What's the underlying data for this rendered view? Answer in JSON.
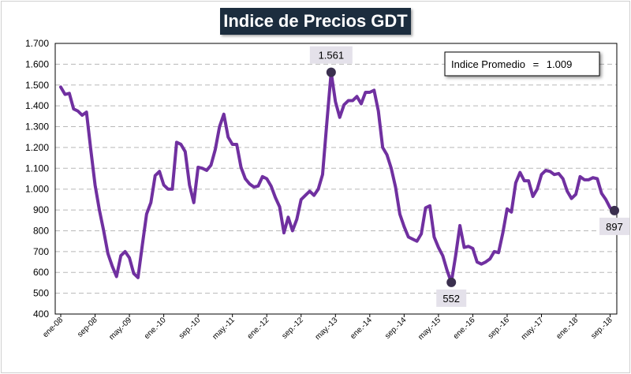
{
  "chart_data": {
    "type": "line",
    "title": "Indice de Precios GDT",
    "xlabel": "",
    "ylabel": "",
    "ylim": [
      400,
      1700
    ],
    "y_ticks": [
      400,
      500,
      600,
      700,
      800,
      900,
      1000,
      1100,
      1200,
      1300,
      1400,
      1500,
      1600,
      1700
    ],
    "y_tick_labels": [
      "400",
      "500",
      "600",
      "700",
      "800",
      "900",
      "1.000",
      "1.100",
      "1.200",
      "1.300",
      "1.400",
      "1.500",
      "1.600",
      "1.700"
    ],
    "x_tick_labels": [
      "ene-08",
      "sep-08",
      "may.-09",
      "ene.-10",
      "sep.-10",
      "may.-11",
      "ene.-12",
      "sep.-12",
      "may.-13",
      "ene.-14",
      "sep.-14",
      "may.-15",
      "ene.-16",
      "sep.-16",
      "may.-17",
      "ene.-18",
      "sep.-18"
    ],
    "x_tick_step": 8,
    "series": [
      {
        "name": "Indice de Precios GDT",
        "color": "#7030a0",
        "values": [
          1490,
          1455,
          1460,
          1385,
          1375,
          1355,
          1370,
          1190,
          1020,
          900,
          800,
          690,
          630,
          580,
          680,
          700,
          670,
          595,
          575,
          730,
          880,
          935,
          1065,
          1085,
          1020,
          1000,
          1000,
          1225,
          1215,
          1180,
          1020,
          935,
          1105,
          1100,
          1090,
          1115,
          1190,
          1300,
          1360,
          1250,
          1215,
          1215,
          1105,
          1050,
          1025,
          1010,
          1015,
          1060,
          1050,
          1015,
          960,
          915,
          790,
          865,
          800,
          855,
          950,
          970,
          990,
          970,
          1000,
          1070,
          1320,
          1561,
          1420,
          1345,
          1405,
          1425,
          1425,
          1445,
          1410,
          1465,
          1465,
          1475,
          1375,
          1200,
          1165,
          1100,
          1010,
          880,
          820,
          770,
          760,
          750,
          785,
          910,
          920,
          770,
          720,
          680,
          610,
          552,
          680,
          825,
          720,
          725,
          715,
          650,
          640,
          650,
          665,
          700,
          695,
          790,
          905,
          890,
          1030,
          1080,
          1040,
          1040,
          965,
          1000,
          1070,
          1090,
          1085,
          1070,
          1075,
          1050,
          990,
          955,
          975,
          1060,
          1045,
          1045,
          1055,
          1050,
          980,
          950,
          910,
          897
        ]
      }
    ],
    "highlighted_points": [
      {
        "index": 63,
        "value": 1561,
        "label": "1.561"
      },
      {
        "index": 91,
        "value": 552,
        "label": "552"
      },
      {
        "index": 129,
        "value": 897,
        "label": "897"
      }
    ],
    "annotation": {
      "label": "Indice Promedio",
      "separator": "=",
      "value": "1.009"
    }
  }
}
